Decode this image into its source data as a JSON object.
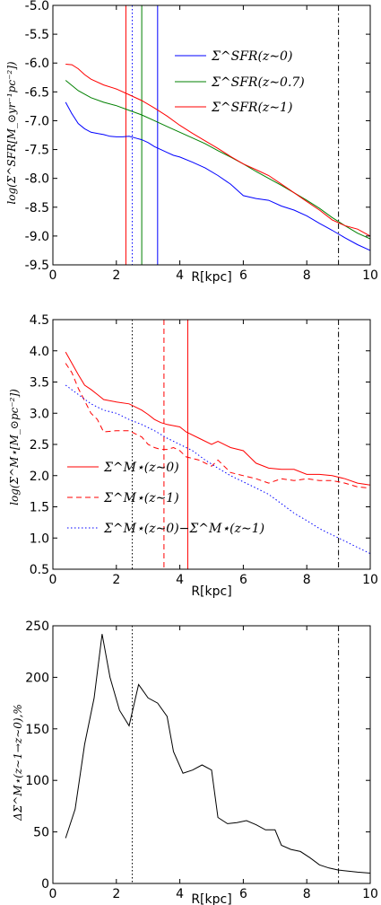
{
  "chart_data": [
    {
      "type": "line",
      "xlabel": "R[kpc]",
      "ylabel": "log(Σ^SFR[M_⊙yr⁻¹pc⁻²])",
      "xlim": [
        0,
        10
      ],
      "ylim": [
        -9.5,
        -5.0
      ],
      "xticks": [
        "0",
        "2",
        "4",
        "6",
        "8",
        "10"
      ],
      "yticks": [
        "-9.5",
        "-9.0",
        "-8.5",
        "-8.0",
        "-7.5",
        "-7.0",
        "-6.5",
        "-6.0",
        "-5.5",
        "-5.0"
      ],
      "grid": false,
      "legend": "upper right",
      "series": [
        {
          "name": "Σ^SFR(z∼0)",
          "color": "#0000ff",
          "style": "solid",
          "x": [
            0.4,
            0.6,
            0.8,
            1.0,
            1.2,
            1.4,
            1.6,
            1.8,
            2.0,
            2.2,
            2.4,
            2.6,
            2.8,
            3.0,
            3.2,
            3.4,
            3.6,
            3.8,
            4.0,
            4.4,
            4.8,
            5.2,
            5.6,
            5.8,
            6.0,
            6.4,
            6.8,
            7.2,
            7.6,
            8.0,
            8.4,
            8.8,
            9.2,
            9.6,
            10.0
          ],
          "y": [
            -6.68,
            -6.88,
            -7.05,
            -7.14,
            -7.2,
            -7.22,
            -7.24,
            -7.27,
            -7.28,
            -7.28,
            -7.27,
            -7.3,
            -7.33,
            -7.38,
            -7.45,
            -7.5,
            -7.55,
            -7.6,
            -7.63,
            -7.72,
            -7.82,
            -7.95,
            -8.1,
            -8.2,
            -8.3,
            -8.35,
            -8.38,
            -8.48,
            -8.55,
            -8.65,
            -8.78,
            -8.9,
            -9.03,
            -9.15,
            -9.25
          ]
        },
        {
          "name": "Σ^SFR(z∼0.7)",
          "color": "#008000",
          "style": "solid",
          "x": [
            0.4,
            0.8,
            1.2,
            1.6,
            2.0,
            2.4,
            2.8,
            3.2,
            3.6,
            4.0,
            4.4,
            4.8,
            5.2,
            5.6,
            6.0,
            6.4,
            6.8,
            7.2,
            7.6,
            8.0,
            8.4,
            8.8,
            9.2,
            9.6,
            10.0
          ],
          "y": [
            -6.3,
            -6.48,
            -6.6,
            -6.68,
            -6.74,
            -6.82,
            -6.9,
            -7.0,
            -7.1,
            -7.2,
            -7.3,
            -7.4,
            -7.52,
            -7.63,
            -7.75,
            -7.88,
            -8.0,
            -8.12,
            -8.25,
            -8.38,
            -8.52,
            -8.68,
            -8.82,
            -8.95,
            -9.05
          ]
        },
        {
          "name": "Σ^SFR(z∼1)",
          "color": "#ff0000",
          "style": "solid",
          "x": [
            0.4,
            0.6,
            0.8,
            1.0,
            1.2,
            1.6,
            2.0,
            2.4,
            2.8,
            3.2,
            3.6,
            4.0,
            4.4,
            4.8,
            5.2,
            5.6,
            6.0,
            6.4,
            6.8,
            7.2,
            7.6,
            8.0,
            8.4,
            8.8,
            9.2,
            9.6,
            10.0
          ],
          "y": [
            -6.02,
            -6.03,
            -6.1,
            -6.2,
            -6.28,
            -6.38,
            -6.45,
            -6.55,
            -6.65,
            -6.78,
            -6.92,
            -7.08,
            -7.22,
            -7.35,
            -7.48,
            -7.62,
            -7.75,
            -7.85,
            -7.95,
            -8.1,
            -8.25,
            -8.4,
            -8.55,
            -8.72,
            -8.82,
            -8.88,
            -9.0
          ]
        }
      ],
      "vlines": [
        {
          "x": 2.3,
          "color": "#ff0000",
          "style": "solid"
        },
        {
          "x": 2.5,
          "color": "#0000ff",
          "style": "dotted"
        },
        {
          "x": 2.8,
          "color": "#008000",
          "style": "solid"
        },
        {
          "x": 3.3,
          "color": "#0000ff",
          "style": "solid"
        },
        {
          "x": 9.0,
          "color": "#000000",
          "style": "dashdot"
        }
      ]
    },
    {
      "type": "line",
      "xlabel": "R[kpc]",
      "ylabel": "log(Σ^M⋆[M_⊙pc⁻²])",
      "xlim": [
        0,
        10
      ],
      "ylim": [
        0.5,
        4.5
      ],
      "xticks": [
        "0",
        "2",
        "4",
        "6",
        "8",
        "10"
      ],
      "yticks": [
        "0.5",
        "1.0",
        "1.5",
        "2.0",
        "2.5",
        "3.0",
        "3.5",
        "4.0",
        "4.5"
      ],
      "grid": false,
      "legend": "lower left",
      "series": [
        {
          "name": "Σ^M⋆(z∼0)",
          "color": "#ff0000",
          "style": "solid",
          "x": [
            0.4,
            0.6,
            0.8,
            1.0,
            1.2,
            1.4,
            1.6,
            2.0,
            2.4,
            2.8,
            3.0,
            3.2,
            3.4,
            3.6,
            3.8,
            4.0,
            4.2,
            4.6,
            5.0,
            5.2,
            5.6,
            6.0,
            6.4,
            6.8,
            7.2,
            7.6,
            8.0,
            8.4,
            8.8,
            9.2,
            9.6,
            10.0
          ],
          "y": [
            3.98,
            3.8,
            3.62,
            3.45,
            3.38,
            3.3,
            3.22,
            3.18,
            3.15,
            3.05,
            2.98,
            2.9,
            2.85,
            2.82,
            2.8,
            2.78,
            2.7,
            2.6,
            2.5,
            2.55,
            2.45,
            2.4,
            2.2,
            2.12,
            2.1,
            2.1,
            2.02,
            2.02,
            2.0,
            1.95,
            1.88,
            1.85
          ]
        },
        {
          "name": "Σ^M⋆(z∼1)",
          "color": "#ff0000",
          "style": "dashed",
          "x": [
            0.4,
            0.6,
            0.8,
            1.0,
            1.2,
            1.4,
            1.6,
            2.0,
            2.4,
            2.8,
            3.0,
            3.2,
            3.4,
            3.6,
            3.8,
            4.0,
            4.2,
            4.6,
            5.0,
            5.2,
            5.6,
            6.0,
            6.4,
            6.8,
            7.2,
            7.6,
            8.0,
            8.4,
            8.8,
            9.2,
            9.6,
            10.0
          ],
          "y": [
            3.8,
            3.65,
            3.4,
            3.2,
            3.0,
            2.9,
            2.7,
            2.72,
            2.72,
            2.62,
            2.5,
            2.45,
            2.42,
            2.42,
            2.45,
            2.4,
            2.3,
            2.25,
            2.15,
            2.25,
            2.05,
            2.0,
            1.95,
            1.88,
            1.95,
            1.92,
            1.95,
            1.92,
            1.92,
            1.88,
            1.82,
            1.8
          ]
        },
        {
          "name": "Σ^M⋆(z∼0)−Σ^M⋆(z∼1)",
          "color": "#0000ff",
          "style": "dotted",
          "x": [
            0.4,
            0.8,
            1.2,
            1.6,
            2.0,
            2.4,
            2.8,
            3.2,
            3.6,
            4.0,
            4.4,
            4.8,
            5.2,
            5.6,
            6.0,
            6.4,
            6.8,
            7.2,
            7.6,
            8.0,
            8.4,
            8.8,
            9.2,
            9.6,
            10.0
          ],
          "y": [
            3.45,
            3.3,
            3.15,
            3.05,
            3.0,
            2.9,
            2.82,
            2.72,
            2.6,
            2.5,
            2.4,
            2.25,
            2.12,
            2.0,
            1.9,
            1.8,
            1.7,
            1.55,
            1.4,
            1.28,
            1.15,
            1.05,
            0.95,
            0.85,
            0.75
          ]
        }
      ],
      "vlines": [
        {
          "x": 2.5,
          "color": "#000000",
          "style": "dotted"
        },
        {
          "x": 3.5,
          "color": "#ff0000",
          "style": "dashed"
        },
        {
          "x": 4.25,
          "color": "#ff0000",
          "style": "solid"
        },
        {
          "x": 9.0,
          "color": "#000000",
          "style": "dashdot"
        }
      ]
    },
    {
      "type": "line",
      "xlabel": "R[kpc]",
      "ylabel": "ΔΣ^M⋆(z∼1→z∼0),%",
      "xlim": [
        0,
        10
      ],
      "ylim": [
        0,
        250
      ],
      "xticks": [
        "0",
        "2",
        "4",
        "6",
        "8",
        "10"
      ],
      "yticks": [
        "0",
        "50",
        "100",
        "150",
        "200",
        "250"
      ],
      "grid": false,
      "series": [
        {
          "color": "#000000",
          "style": "solid",
          "x": [
            0.4,
            0.7,
            1.0,
            1.3,
            1.55,
            1.8,
            2.1,
            2.4,
            2.7,
            3.0,
            3.3,
            3.6,
            3.8,
            4.1,
            4.4,
            4.7,
            5.0,
            5.2,
            5.5,
            5.8,
            6.1,
            6.4,
            6.7,
            7.0,
            7.2,
            7.5,
            7.8,
            8.1,
            8.4,
            8.7,
            9.0,
            9.3,
            9.6,
            10.0
          ],
          "y": [
            44,
            72,
            135,
            180,
            242,
            200,
            168,
            153,
            193,
            180,
            175,
            162,
            128,
            107,
            110,
            115,
            110,
            64,
            58,
            59,
            61,
            57,
            52,
            52,
            37,
            33,
            31,
            25,
            18,
            15,
            13,
            12,
            11,
            10
          ]
        }
      ],
      "vlines": [
        {
          "x": 2.5,
          "color": "#000000",
          "style": "dotted"
        },
        {
          "x": 9.0,
          "color": "#000000",
          "style": "dashdot"
        }
      ]
    }
  ]
}
